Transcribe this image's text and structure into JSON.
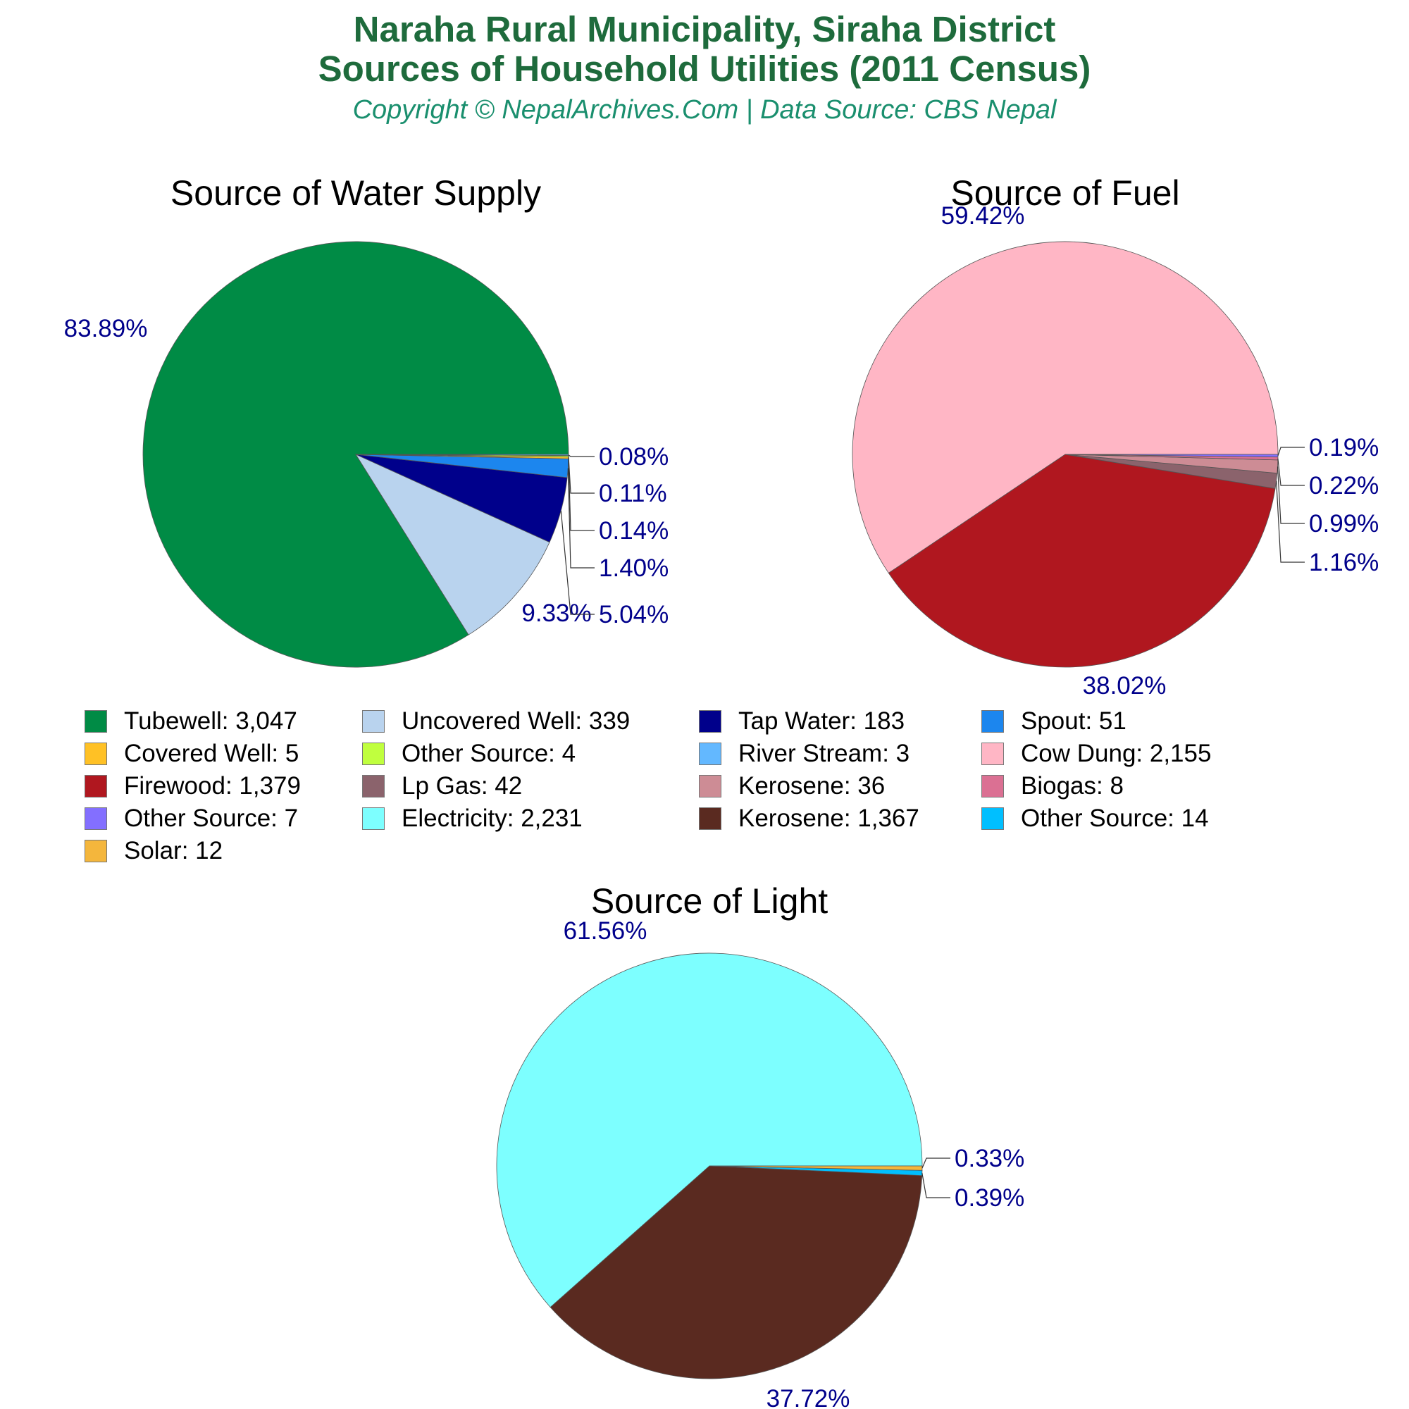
{
  "header": {
    "title_line1": "Naraha Rural Municipality, Siraha District",
    "title_line2": "Sources of Household Utilities (2011 Census)",
    "subtitle": "Copyright © NepalArchives.Com | Data Source: CBS Nepal"
  },
  "chart_data": [
    {
      "type": "pie",
      "title": "Source of Water Supply",
      "slices": [
        {
          "name": "Tubewell",
          "value": 3047,
          "label": "83.89%",
          "color": "#008b45"
        },
        {
          "name": "Uncovered Well",
          "value": 339,
          "label": "9.33%",
          "color": "#b9d3ee"
        },
        {
          "name": "Tap Water",
          "value": 183,
          "label": "5.04%",
          "color": "#00008b"
        },
        {
          "name": "Spout",
          "value": 51,
          "label": "1.40%",
          "color": "#1c86ee"
        },
        {
          "name": "Covered Well",
          "value": 5,
          "label": "0.14%",
          "color": "#ffc125"
        },
        {
          "name": "Other Source",
          "value": 4,
          "label": "0.11%",
          "color": "#c0ff3e"
        },
        {
          "name": "River Stream",
          "value": 3,
          "label": "0.08%",
          "color": "#63b8ff"
        }
      ]
    },
    {
      "type": "pie",
      "title": "Source of Fuel",
      "slices": [
        {
          "name": "Cow Dung",
          "value": 2155,
          "label": "59.42%",
          "color": "#ffb6c5"
        },
        {
          "name": "Firewood",
          "value": 1379,
          "label": "38.02%",
          "color": "#b0171f"
        },
        {
          "name": "Lp Gas",
          "value": 42,
          "label": "1.16%",
          "color": "#8b636c"
        },
        {
          "name": "Kerosene",
          "value": 36,
          "label": "0.99%",
          "color": "#cd8c95"
        },
        {
          "name": "Biogas",
          "value": 8,
          "label": "0.22%",
          "color": "#db7093"
        },
        {
          "name": "Other Source",
          "value": 7,
          "label": "0.19%",
          "color": "#836fff"
        }
      ]
    },
    {
      "type": "pie",
      "title": "Source of Light",
      "slices": [
        {
          "name": "Electricity",
          "value": 2231,
          "label": "61.56%",
          "color": "#7dffff"
        },
        {
          "name": "Kerosene",
          "value": 1367,
          "label": "37.72%",
          "color": "#5a2a20"
        },
        {
          "name": "Other Source",
          "value": 14,
          "label": "0.39%",
          "color": "#00bfff"
        },
        {
          "name": "Solar",
          "value": 12,
          "label": "0.33%",
          "color": "#f4b63c"
        }
      ]
    }
  ],
  "legend": {
    "items": [
      {
        "label": "Tubewell: 3,047",
        "color": "#008b45"
      },
      {
        "label": "Uncovered Well: 339",
        "color": "#b9d3ee"
      },
      {
        "label": "Tap Water: 183",
        "color": "#00008b"
      },
      {
        "label": "Spout: 51",
        "color": "#1c86ee"
      },
      {
        "label": "Covered Well: 5",
        "color": "#ffc125"
      },
      {
        "label": "Other Source: 4",
        "color": "#c0ff3e"
      },
      {
        "label": "River Stream: 3",
        "color": "#63b8ff"
      },
      {
        "label": "Cow Dung: 2,155",
        "color": "#ffb6c5"
      },
      {
        "label": "Firewood: 1,379",
        "color": "#b0171f"
      },
      {
        "label": "Lp Gas: 42",
        "color": "#8b636c"
      },
      {
        "label": "Kerosene: 36",
        "color": "#cd8c95"
      },
      {
        "label": "Biogas: 8",
        "color": "#db7093"
      },
      {
        "label": "Other Source: 7",
        "color": "#836fff"
      },
      {
        "label": "Electricity: 2,231",
        "color": "#7dffff"
      },
      {
        "label": "Kerosene: 1,367",
        "color": "#5a2a20"
      },
      {
        "label": "Other Source: 14",
        "color": "#00bfff"
      },
      {
        "label": "Solar: 12",
        "color": "#f4b63c"
      }
    ]
  }
}
